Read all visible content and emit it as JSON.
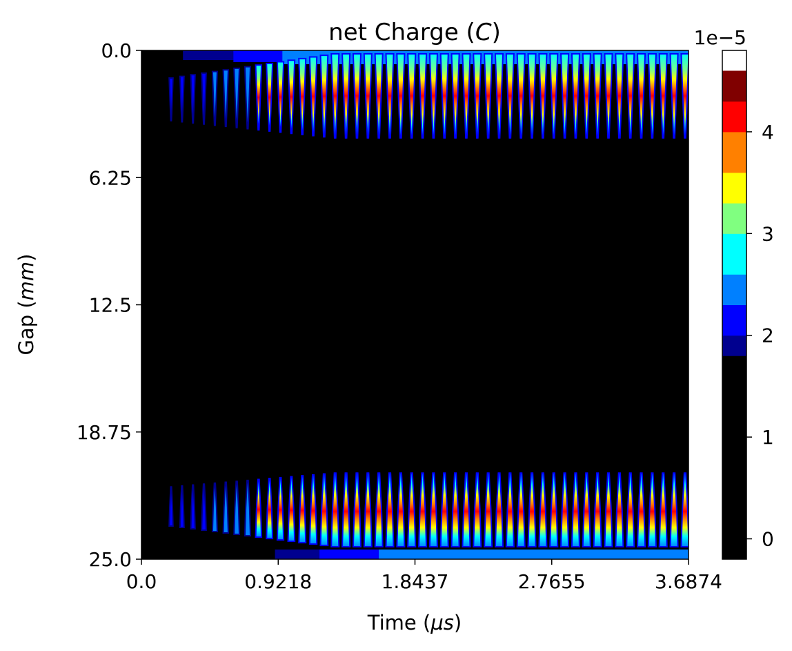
{
  "chart_data": {
    "type": "heatmap",
    "title": {
      "pre": "net Charge (",
      "var": "C",
      "post": ")"
    },
    "xlabel": {
      "pre": "Time (",
      "var": "μs",
      "post": ")"
    },
    "ylabel": {
      "pre": "Gap (",
      "var": "mm",
      "post": ")"
    },
    "xlim": [
      0.0,
      3.6874
    ],
    "ylim": [
      0.0,
      25.0
    ],
    "y_inverted": true,
    "xticks": [
      "0.0",
      "0.9218",
      "1.8437",
      "2.7655",
      "3.6874"
    ],
    "xtick_values": [
      0.0,
      0.9218,
      1.8437,
      2.7655,
      3.6874
    ],
    "yticks": [
      "0.0",
      "6.25",
      "12.5",
      "18.75",
      "25.0"
    ],
    "ytick_values": [
      0.0,
      6.25,
      12.5,
      18.75,
      25.0
    ],
    "grid": false,
    "colorbar": {
      "multiplier": "1e−5",
      "range": [
        -0.2,
        4.8
      ],
      "boundaries": [
        -0.2,
        1.8,
        2.0,
        2.3,
        2.6,
        3.0,
        3.3,
        3.6,
        4.0,
        4.3,
        4.6,
        4.8
      ],
      "colors": [
        "#000000",
        "#00008f",
        "#0000ff",
        "#0080ff",
        "#00ffff",
        "#80ff80",
        "#ffff00",
        "#ff8000",
        "#ff0000",
        "#800000"
      ],
      "ticks": [
        "0",
        "1",
        "2",
        "3",
        "4"
      ],
      "tick_values": [
        0,
        1,
        2,
        3,
        4
      ]
    },
    "pulse_period_us": 0.0737,
    "pulse_start_us": 0.2,
    "bands": [
      {
        "name": "top",
        "gap_range_mm": [
          0.0,
          4.3
        ]
      },
      {
        "name": "bottom",
        "gap_range_mm": [
          20.7,
          25.0
        ]
      }
    ]
  }
}
